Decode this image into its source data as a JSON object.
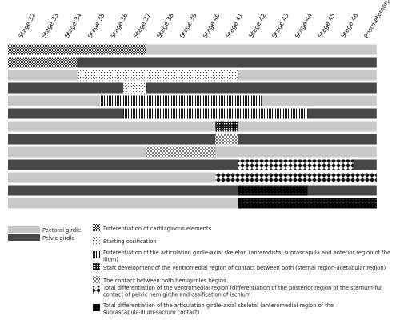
{
  "stages": [
    "Stage 32",
    "Stage 33",
    "Stage 34",
    "Stage 35",
    "Stage 36",
    "Stage 37",
    "Stage 38",
    "Stage 39",
    "Stage 40",
    "Stage 41",
    "Stage 42",
    "Stage 43",
    "Stage 44",
    "Stage 45",
    "Stage 46",
    "Postmetamorphosis"
  ],
  "colors": {
    "pectoral": "#c8c8c8",
    "pelvic": "#474747",
    "background": "#ffffff"
  },
  "girdles": [
    {
      "key": "pectoral",
      "label": "Pectoral girdle",
      "color": "#c8c8c8"
    },
    {
      "key": "pelvic",
      "label": "Pelvic girdle",
      "color": "#474747"
    }
  ],
  "events": [
    {
      "key": "cartilage",
      "pattern": "checker-fine",
      "label": "Differentiation of cartilaginous elements"
    },
    {
      "key": "ossification",
      "pattern": "sparse-dots",
      "label": "Starting ossification"
    },
    {
      "key": "articulation",
      "pattern": "vertical-lines",
      "label": "Differentiation of the articulation girdle-axial skeleton (anterodistal suprascapula and anterior region of the ilium)"
    },
    {
      "key": "ventromedial",
      "pattern": "grid",
      "label": "Start development of the ventromedial region of contact between both (sternal region-acetabular region)"
    },
    {
      "key": "hemigirdles",
      "pattern": "small-checker",
      "label": "The contact between both hemigirdles begins"
    },
    {
      "key": "total_ventromedial",
      "pattern": "diamonds",
      "label": "Total differentiation of the ventromedial region (differentiation of the posterior region of the sternum-full contact of pelvic hemigirdle and ossification of ischium"
    },
    {
      "key": "total_articulation",
      "pattern": "black-dots",
      "label": "Total differentiation of the articulation girdle-axial skeletal (anteromedial region of the suprascapula-ilium-sacrum contact)"
    }
  ],
  "timeline": [
    {
      "girdle": "pectoral",
      "segments": [
        {
          "event": "cartilage",
          "from": 0,
          "to": 5
        }
      ]
    },
    {
      "girdle": "pelvic",
      "segments": [
        {
          "event": "cartilage",
          "from": 0,
          "to": 2
        }
      ]
    },
    {
      "girdle": "pectoral",
      "segments": [
        {
          "event": "ossification",
          "from": 3,
          "to": 9
        }
      ]
    },
    {
      "girdle": "pelvic",
      "segments": [
        {
          "event": "ossification",
          "from": 5,
          "to": 5
        }
      ]
    },
    {
      "girdle": "pectoral",
      "segments": [
        {
          "event": "articulation",
          "from": 4,
          "to": 10
        }
      ]
    },
    {
      "girdle": "pelvic",
      "segments": [
        {
          "event": "articulation",
          "from": 5,
          "to": 12
        }
      ]
    },
    {
      "girdle": "pectoral",
      "segments": [
        {
          "event": "ventromedial",
          "from": 9,
          "to": 9
        }
      ]
    },
    {
      "girdle": "pelvic",
      "segments": [
        {
          "event": "hemigirdles",
          "from": 9,
          "to": 9
        }
      ]
    },
    {
      "girdle": "pectoral",
      "segments": [
        {
          "event": "hemigirdles",
          "from": 6,
          "to": 8
        }
      ]
    },
    {
      "girdle": "pelvic",
      "segments": [
        {
          "event": "total_ventromedial",
          "from": 10,
          "to": 14
        }
      ]
    },
    {
      "girdle": "pectoral",
      "segments": [
        {
          "event": "total_ventromedial",
          "from": 9,
          "to": 15
        }
      ]
    },
    {
      "girdle": "pelvic",
      "segments": [
        {
          "event": "total_articulation",
          "from": 10,
          "to": 12
        }
      ]
    },
    {
      "girdle": "pectoral",
      "segments": [
        {
          "event": "total_articulation",
          "from": 10,
          "to": 15
        }
      ]
    }
  ]
}
